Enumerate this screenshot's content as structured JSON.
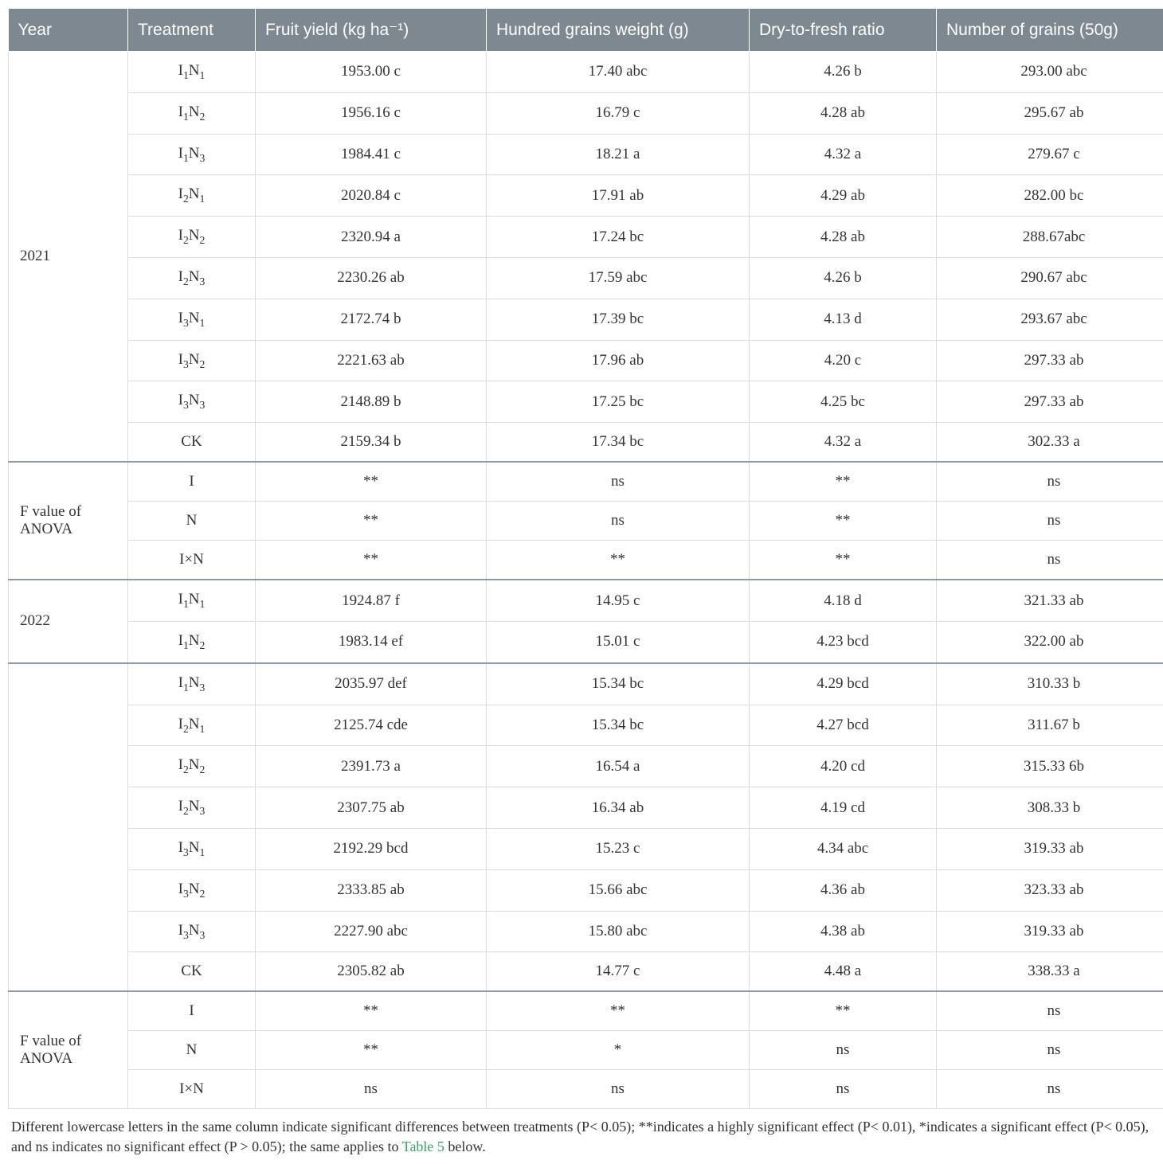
{
  "columns": {
    "year": "Year",
    "treatment": "Treatment",
    "fruit_yield": "Fruit yield   (kg ha⁻¹)",
    "hgw": "Hundred grains weight (g)",
    "dtf": "Dry-to-fresh ratio",
    "ng": "Number of grains (50g)"
  },
  "footnote_pre": "Different lowercase letters in the same column indicate significant differences between treatments (P< 0.05); **indicates a highly significant effect (P< 0.01), *indicates a significant effect (P< 0.05), and ns indicates no significant effect (P > 0.05); the same applies to ",
  "footnote_link": "Table 5",
  "footnote_post": " below.",
  "colors": {
    "header_bg": "#7d8891",
    "header_fg": "#ffffff",
    "border": "#dcdcdc",
    "section_border": "#8f9aa2",
    "link": "#2fa866",
    "text": "#333333",
    "bg": "#ffffff"
  },
  "sections": [
    {
      "year": "2021",
      "rows": [
        {
          "t": "I1N1",
          "y": "1953.00 c",
          "h": "17.40 abc",
          "d": "4.26 b",
          "n": "293.00 abc"
        },
        {
          "t": "I1N2",
          "y": "1956.16 c",
          "h": "16.79 c",
          "d": "4.28 ab",
          "n": "295.67 ab"
        },
        {
          "t": "I1N3",
          "y": "1984.41 c",
          "h": "18.21 a",
          "d": "4.32 a",
          "n": "279.67 c"
        },
        {
          "t": "I2N1",
          "y": "2020.84 c",
          "h": "17.91 ab",
          "d": "4.29 ab",
          "n": "282.00 bc"
        },
        {
          "t": "I2N2",
          "y": "2320.94 a",
          "h": "17.24 bc",
          "d": "4.28 ab",
          "n": "288.67abc"
        },
        {
          "t": "I2N3",
          "y": "2230.26 ab",
          "h": "17.59 abc",
          "d": "4.26 b",
          "n": "290.67 abc"
        },
        {
          "t": "I3N1",
          "y": "2172.74 b",
          "h": "17.39 bc",
          "d": "4.13 d",
          "n": "293.67 abc"
        },
        {
          "t": "I3N2",
          "y": "2221.63 ab",
          "h": "17.96 ab",
          "d": "4.20 c",
          "n": "297.33 ab"
        },
        {
          "t": "I3N3",
          "y": "2148.89 b",
          "h": "17.25 bc",
          "d": "4.25 bc",
          "n": "297.33 ab"
        },
        {
          "t": "CK",
          "y": "2159.34 b",
          "h": "17.34 bc",
          "d": "4.32 a",
          "n": "302.33 a"
        }
      ]
    },
    {
      "year": "F value of ANOVA",
      "rows": [
        {
          "t": "I",
          "y": "**",
          "h": "ns",
          "d": "**",
          "n": "ns"
        },
        {
          "t": "N",
          "y": "**",
          "h": "ns",
          "d": "**",
          "n": "ns"
        },
        {
          "t": "I×N",
          "y": "**",
          "h": "**",
          "d": "**",
          "n": "ns"
        }
      ]
    },
    {
      "year": "2022",
      "rows": [
        {
          "t": "I1N1",
          "y": "1924.87 f",
          "h": "14.95 c",
          "d": "4.18 d",
          "n": "321.33 ab"
        },
        {
          "t": "I1N2",
          "y": "1983.14 ef",
          "h": "15.01 c",
          "d": "4.23 bcd",
          "n": "322.00 ab"
        }
      ]
    },
    {
      "year": "",
      "rows": [
        {
          "t": "I1N3",
          "y": "2035.97 def",
          "h": "15.34 bc",
          "d": "4.29 bcd",
          "n": "310.33 b"
        },
        {
          "t": "I2N1",
          "y": "2125.74 cde",
          "h": "15.34 bc",
          "d": "4.27 bcd",
          "n": "311.67 b"
        },
        {
          "t": "I2N2",
          "y": "2391.73 a",
          "h": "16.54 a",
          "d": "4.20 cd",
          "n": "315.33 6b"
        },
        {
          "t": "I2N3",
          "y": "2307.75 ab",
          "h": "16.34 ab",
          "d": "4.19 cd",
          "n": "308.33 b"
        },
        {
          "t": "I3N1",
          "y": "2192.29 bcd",
          "h": "15.23 c",
          "d": "4.34 abc",
          "n": "319.33 ab"
        },
        {
          "t": "I3N2",
          "y": "2333.85 ab",
          "h": "15.66 abc",
          "d": "4.36 ab",
          "n": "323.33 ab"
        },
        {
          "t": "I3N3",
          "y": "2227.90 abc",
          "h": "15.80 abc",
          "d": "4.38 ab",
          "n": "319.33 ab"
        },
        {
          "t": "CK",
          "y": "2305.82 ab",
          "h": "14.77 c",
          "d": "4.48 a",
          "n": "338.33 a"
        }
      ]
    },
    {
      "year": "F value of ANOVA",
      "rows": [
        {
          "t": "I",
          "y": "**",
          "h": "**",
          "d": "**",
          "n": "ns"
        },
        {
          "t": "N",
          "y": "**",
          "h": "*",
          "d": "ns",
          "n": "ns"
        },
        {
          "t": "I×N",
          "y": "ns",
          "h": "ns",
          "d": "ns",
          "n": "ns"
        }
      ]
    }
  ]
}
